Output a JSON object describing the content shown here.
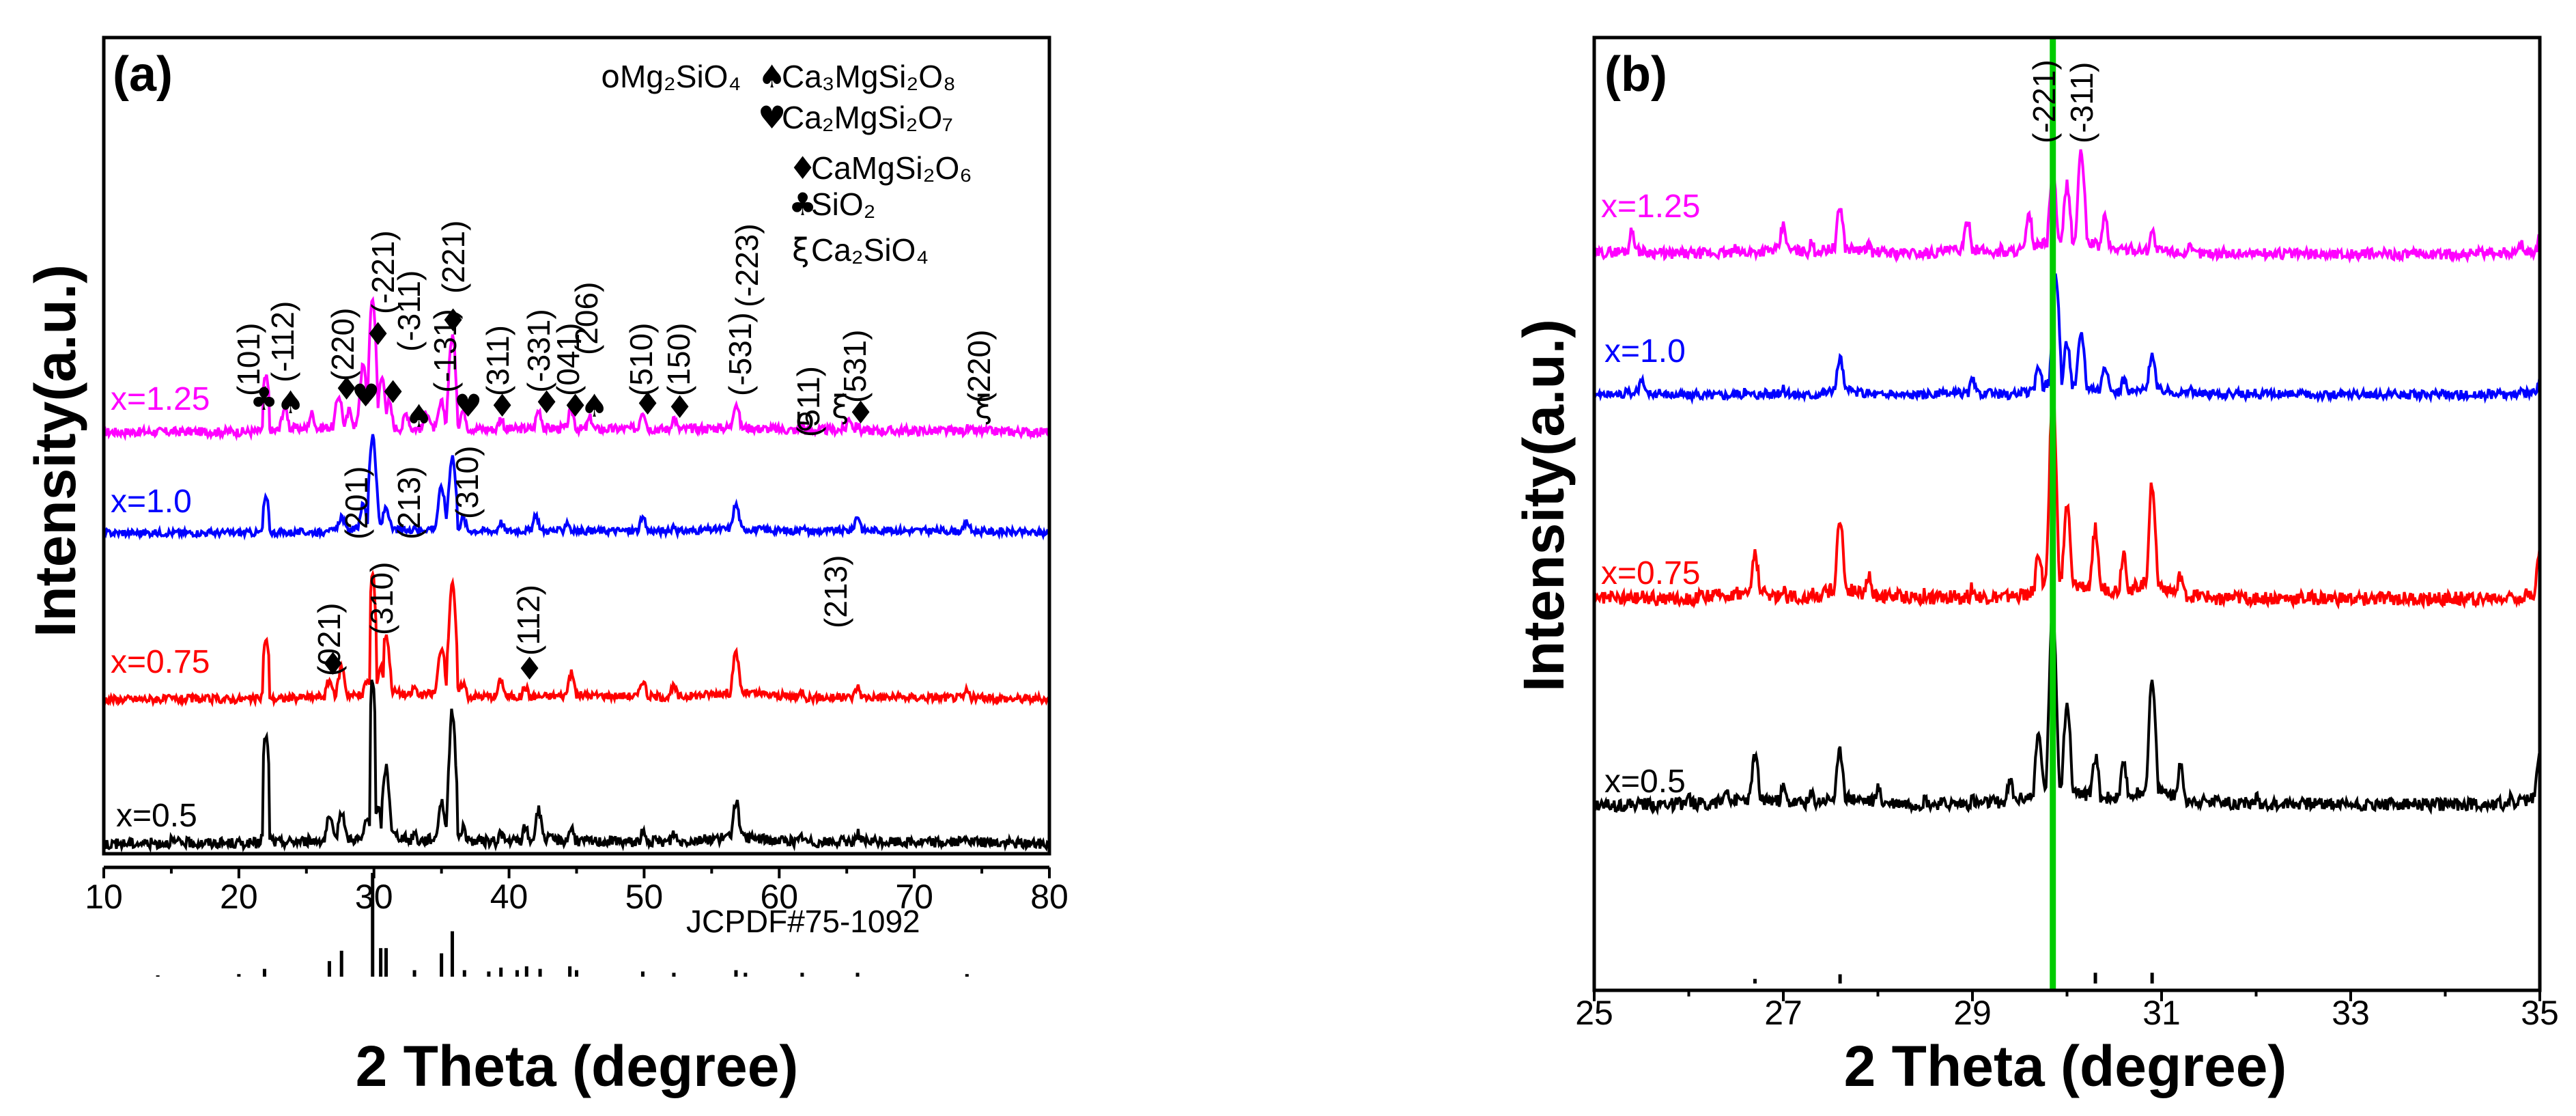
{
  "chart_data": [
    {
      "type": "line",
      "panel_label": "(a)",
      "xlabel": "2 Theta (degree)",
      "ylabel": "Intensity(a.u.)",
      "xlim": [
        10,
        80
      ],
      "xticks": [
        "10",
        "20",
        "30",
        "40",
        "50",
        "60",
        "70",
        "80"
      ],
      "y_ticks_shown": false,
      "series": [
        {
          "name": "x=1.25",
          "color": "#ff00ff",
          "x": [
            10,
            15,
            20,
            21.5,
            22,
            22.5,
            23.4,
            25.4,
            27.4,
            28.2,
            29.2,
            29.9,
            30.6,
            31.1,
            32.4,
            33.9,
            35.0,
            35.8,
            36.6,
            39.4,
            42.2,
            44.6,
            46.0,
            49.9,
            52.2,
            56.8,
            61.7,
            65.2,
            65.8,
            73.9,
            80
          ],
          "y": [
            0.04,
            0.05,
            0.05,
            0.05,
            0.42,
            0.06,
            0.22,
            0.18,
            0.3,
            0.2,
            0.5,
            0.95,
            0.42,
            0.25,
            0.18,
            0.2,
            0.25,
            0.7,
            0.2,
            0.15,
            0.2,
            0.2,
            0.15,
            0.2,
            0.15,
            0.25,
            0.1,
            0.15,
            0.1,
            0.08,
            0.04
          ]
        },
        {
          "name": "x=1.0",
          "color": "#0000ff",
          "x": [
            10,
            15,
            20,
            21.5,
            22,
            22.5,
            26.5,
            27.6,
            29.2,
            29.9,
            30.9,
            33.0,
            35.0,
            35.8,
            36.6,
            39.4,
            42.0,
            44.3,
            49.9,
            52.2,
            56.8,
            61.7,
            65.8,
            73.9,
            80
          ],
          "y": [
            0.04,
            0.05,
            0.05,
            0.05,
            0.35,
            0.06,
            0.1,
            0.2,
            0.3,
            0.9,
            0.28,
            0.12,
            0.45,
            0.72,
            0.18,
            0.15,
            0.2,
            0.15,
            0.18,
            0.12,
            0.3,
            0.12,
            0.2,
            0.15,
            0.04
          ]
        },
        {
          "name": "x=0.75",
          "color": "#ff0000",
          "x": [
            10,
            15,
            20,
            21.5,
            22,
            22.5,
            26.7,
            27.6,
            29.5,
            29.9,
            30.5,
            30.9,
            33.0,
            35.0,
            35.8,
            36.6,
            39.4,
            41.2,
            44.6,
            49.9,
            52.2,
            56.8,
            61.7,
            65.8,
            73.9,
            80
          ],
          "y": [
            0.04,
            0.05,
            0.05,
            0.05,
            0.5,
            0.06,
            0.2,
            0.3,
            0.2,
            1.0,
            0.3,
            0.55,
            0.15,
            0.45,
            0.95,
            0.18,
            0.2,
            0.15,
            0.25,
            0.2,
            0.15,
            0.4,
            0.12,
            0.15,
            0.12,
            0.04
          ]
        },
        {
          "name": "x=0.5",
          "color": "#000000",
          "x": [
            10,
            15,
            20,
            21.5,
            22,
            22.5,
            26.7,
            27.6,
            29.5,
            29.9,
            30.3,
            30.9,
            33.0,
            35.0,
            35.8,
            36.6,
            39.4,
            41.2,
            42.2,
            44.6,
            49.9,
            52.2,
            56.8,
            61.7,
            65.8,
            73.9,
            80
          ],
          "y": [
            0.04,
            0.08,
            0.06,
            0.06,
            0.68,
            0.08,
            0.2,
            0.25,
            0.2,
            1.0,
            0.25,
            0.5,
            0.12,
            0.3,
            0.82,
            0.15,
            0.12,
            0.15,
            0.25,
            0.15,
            0.12,
            0.12,
            0.3,
            0.1,
            0.12,
            0.1,
            0.04
          ]
        },
        {
          "name": "JCPDF#75-1092",
          "color": "#000000",
          "style": "sticks",
          "x": [
            14,
            20,
            21.9,
            26.7,
            27.6,
            29.9,
            30.5,
            30.9,
            33.0,
            35.0,
            35.8,
            36.7,
            38.5,
            39.4,
            40.6,
            41.3,
            42.3,
            44.5,
            45.0,
            49.9,
            52.2,
            56.8,
            57.5,
            61.7,
            65.8,
            73.9
          ],
          "y": [
            0.01,
            0.02,
            0.06,
            0.12,
            0.2,
            0.8,
            0.22,
            0.22,
            0.05,
            0.18,
            0.35,
            0.05,
            0.04,
            0.07,
            0.05,
            0.08,
            0.06,
            0.08,
            0.05,
            0.04,
            0.03,
            0.05,
            0.03,
            0.03,
            0.03,
            0.02
          ]
        }
      ],
      "legend": [
        {
          "symbol": "o",
          "text": "Mg₂SiO₄"
        },
        {
          "symbol": "♠",
          "text": "Ca₃MgSi₂O₈"
        },
        {
          "symbol": "♥",
          "text": "Ca₂MgSi₂O₇"
        },
        {
          "symbol": "♦",
          "text": "CaMgSi₂O₆"
        },
        {
          "symbol": "♣",
          "text": "SiO₂"
        },
        {
          "symbol": "ξ",
          "text": "Ca₂SiO₄"
        }
      ],
      "reference_label": "JCPDF#75-1092",
      "peak_labels": [
        "(101)",
        "(-112)",
        "(220)",
        "(-221)",
        "(-311)",
        "(-131)",
        "(221)",
        "(311)",
        "(-331)",
        "(041)",
        "(206)",
        "(510)",
        "(150)",
        "(-531)",
        "(-223)",
        "(511)",
        "(531)",
        "(220)",
        "(201)",
        "(213)",
        "(310)",
        "(021)",
        "(310)",
        "(112)",
        "(213)"
      ],
      "phase_markers": [
        "♣",
        "♠",
        "♦",
        "♥",
        "♦",
        "♠",
        "♦",
        "♥",
        "♦",
        "♦",
        "♦",
        "♠",
        "♦",
        "♦",
        "♦",
        "o",
        "ξ",
        "♦",
        "ξ",
        "♦",
        "♦"
      ]
    },
    {
      "type": "line",
      "panel_label": "(b)",
      "xlabel": "2 Theta (degree)",
      "ylabel": "Intensity(a.u.)",
      "xlim": [
        25,
        35
      ],
      "xticks": [
        "25",
        "27",
        "29",
        "31",
        "33",
        "35"
      ],
      "y_ticks_shown": false,
      "vertical_line": {
        "x": 29.85,
        "color": "#00cc00"
      },
      "peak_labels": [
        "(-221)",
        "(-311)"
      ],
      "series": [
        {
          "name": "x=1.25",
          "color": "#ff00ff",
          "x": [
            25,
            25.4,
            25.8,
            26.5,
            27.0,
            27.3,
            27.6,
            27.9,
            28.5,
            28.95,
            29.3,
            29.6,
            29.85,
            30.0,
            30.15,
            30.4,
            30.9,
            31.3,
            32.0,
            33.0,
            34.0,
            34.8,
            35
          ],
          "y": [
            0.1,
            0.22,
            0.08,
            0.12,
            0.25,
            0.15,
            0.35,
            0.15,
            0.1,
            0.28,
            0.12,
            0.3,
            0.55,
            0.48,
            0.66,
            0.3,
            0.22,
            0.12,
            0.1,
            0.08,
            0.07,
            0.15,
            0.18
          ]
        },
        {
          "name": "x=1.0",
          "color": "#0000ff",
          "x": [
            25,
            25.5,
            26.0,
            26.6,
            27.0,
            27.3,
            27.6,
            27.9,
            28.5,
            29.0,
            29.4,
            29.7,
            29.88,
            30.0,
            30.15,
            30.4,
            30.6,
            30.9,
            31.3,
            32.0,
            33.0,
            34.0,
            34.8,
            35
          ],
          "y": [
            0.1,
            0.2,
            0.08,
            0.12,
            0.14,
            0.1,
            0.35,
            0.12,
            0.1,
            0.2,
            0.1,
            0.3,
            0.9,
            0.45,
            0.52,
            0.3,
            0.2,
            0.38,
            0.15,
            0.12,
            0.1,
            0.1,
            0.12,
            0.2
          ]
        },
        {
          "name": "x=0.75",
          "color": "#ff0000",
          "x": [
            25,
            25.5,
            26.0,
            26.7,
            27.0,
            27.3,
            27.6,
            27.9,
            28.5,
            29.0,
            29.4,
            29.7,
            29.85,
            30.0,
            30.3,
            30.6,
            30.9,
            31.2,
            31.6,
            32.0,
            33.0,
            34.0,
            34.7,
            35
          ],
          "y": [
            0.1,
            0.12,
            0.1,
            0.3,
            0.15,
            0.12,
            0.45,
            0.2,
            0.12,
            0.15,
            0.12,
            0.3,
            1.0,
            0.5,
            0.4,
            0.3,
            0.6,
            0.2,
            0.1,
            0.1,
            0.08,
            0.08,
            0.12,
            0.3
          ]
        },
        {
          "name": "x=0.5",
          "color": "#000000",
          "x": [
            25,
            25.5,
            26.0,
            26.4,
            26.7,
            27.0,
            27.3,
            27.6,
            28.0,
            28.5,
            29.0,
            29.4,
            29.7,
            29.85,
            30.0,
            30.3,
            30.6,
            30.9,
            31.2,
            31.6,
            32.0,
            32.5,
            33.0,
            34.0,
            34.7,
            35
          ],
          "y": [
            0.05,
            0.08,
            0.1,
            0.15,
            0.3,
            0.15,
            0.12,
            0.32,
            0.15,
            0.1,
            0.1,
            0.18,
            0.4,
            1.0,
            0.55,
            0.3,
            0.25,
            0.65,
            0.25,
            0.12,
            0.1,
            0.1,
            0.08,
            0.08,
            0.1,
            0.3
          ]
        },
        {
          "name": "JCPDF#75-1092",
          "color": "#000000",
          "style": "sticks",
          "x": [
            26.7,
            27.6,
            29.85,
            30.3,
            30.9,
            35.0
          ],
          "y": [
            0.15,
            0.3,
            0.9,
            0.35,
            0.35,
            0.45
          ]
        }
      ]
    }
  ]
}
